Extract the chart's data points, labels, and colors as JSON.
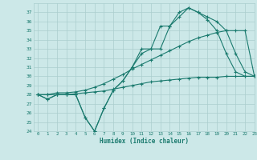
{
  "xlabel": "Humidex (Indice chaleur)",
  "x": [
    0,
    1,
    2,
    3,
    4,
    5,
    6,
    7,
    8,
    9,
    10,
    11,
    12,
    13,
    14,
    15,
    16,
    17,
    18,
    19,
    20,
    21,
    22,
    23
  ],
  "line1": [
    28,
    27.5,
    28,
    28,
    28,
    25.5,
    24,
    26.5,
    28.5,
    29.5,
    31,
    33,
    33,
    35.5,
    35.5,
    36.5,
    37.5,
    37,
    36.5,
    36,
    35,
    32.5,
    30.5,
    30
  ],
  "line2": [
    28,
    27.5,
    28,
    28,
    28,
    25.5,
    24,
    26.5,
    28.5,
    29.5,
    31,
    32.5,
    33,
    33,
    35.5,
    37,
    37.5,
    37,
    36.2,
    35,
    32.5,
    30.5,
    30,
    30
  ],
  "line3": [
    28,
    28,
    28.2,
    28.2,
    28.3,
    28.5,
    28.8,
    29.2,
    29.7,
    30.2,
    30.8,
    31.3,
    31.8,
    32.3,
    32.8,
    33.3,
    33.8,
    34.2,
    34.5,
    34.8,
    35.0,
    35.0,
    35.0,
    30
  ],
  "line4": [
    28,
    28,
    28,
    28,
    28.1,
    28.2,
    28.3,
    28.4,
    28.6,
    28.8,
    29.0,
    29.2,
    29.4,
    29.5,
    29.6,
    29.7,
    29.8,
    29.9,
    29.9,
    29.9,
    30.0,
    30.0,
    30.0,
    30
  ],
  "ylim": [
    24,
    38
  ],
  "xlim": [
    -0.5,
    23
  ],
  "yticks": [
    24,
    25,
    26,
    27,
    28,
    29,
    30,
    31,
    32,
    33,
    34,
    35,
    36,
    37
  ],
  "xticks": [
    0,
    1,
    2,
    3,
    4,
    5,
    6,
    7,
    8,
    9,
    10,
    11,
    12,
    13,
    14,
    15,
    16,
    17,
    18,
    19,
    20,
    21,
    22,
    23
  ],
  "line_color": "#1a7a6e",
  "bg_color": "#cce8e8",
  "grid_color": "#aacece"
}
